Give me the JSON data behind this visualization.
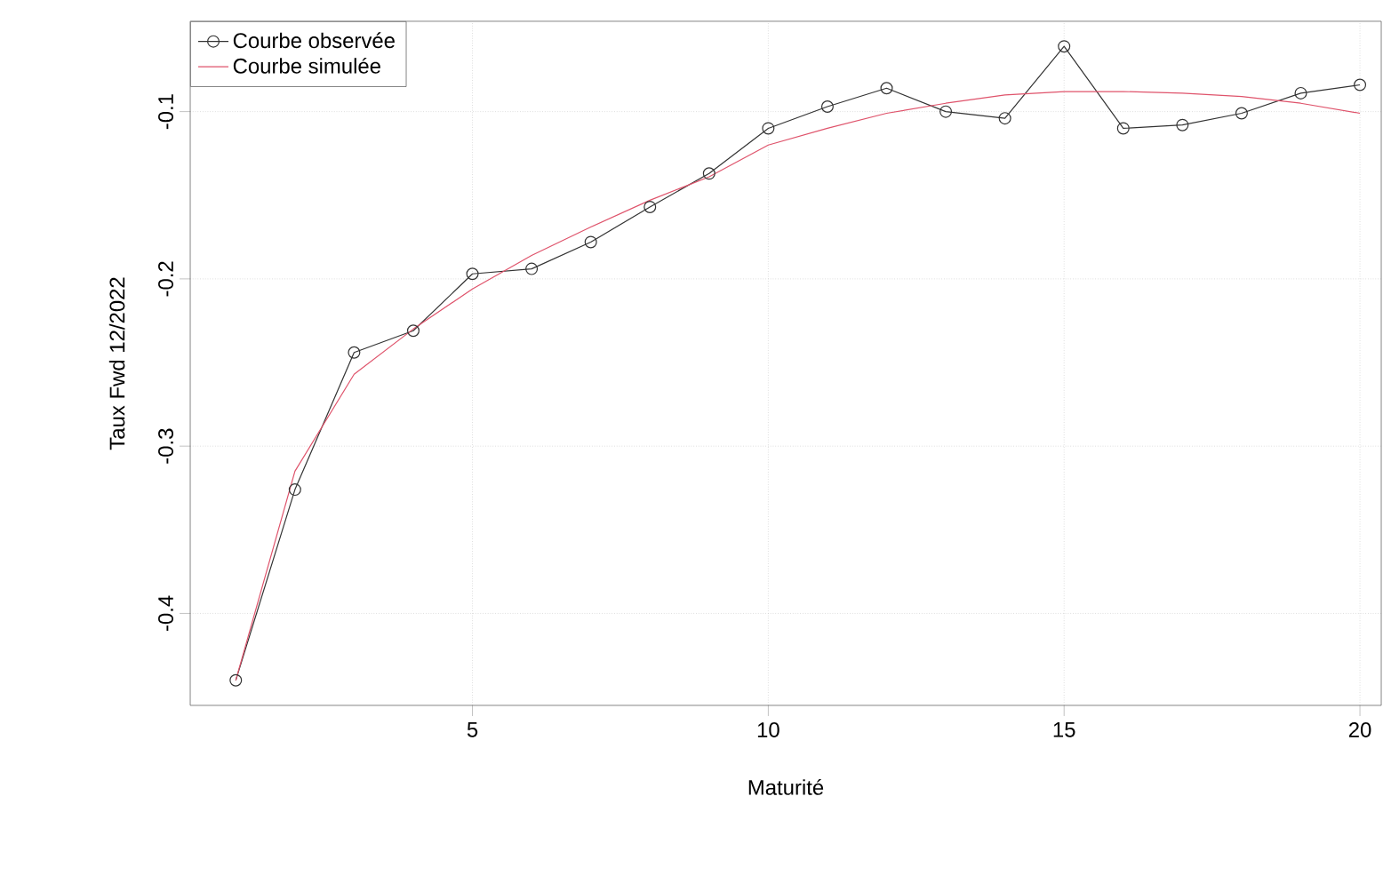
{
  "chart_data": {
    "type": "line",
    "xlabel": "Maturité",
    "ylabel": "Taux Fwd 12/2022",
    "x": [
      1,
      2,
      3,
      4,
      5,
      6,
      7,
      8,
      9,
      10,
      11,
      12,
      13,
      14,
      15,
      16,
      17,
      18,
      19,
      20
    ],
    "series": [
      {
        "name": "Courbe observée",
        "color": "#333333",
        "marker": "circle",
        "values": [
          -0.44,
          -0.326,
          -0.244,
          -0.231,
          -0.197,
          -0.194,
          -0.178,
          -0.157,
          -0.137,
          -0.11,
          -0.097,
          -0.086,
          -0.1,
          -0.104,
          -0.061,
          -0.11,
          -0.108,
          -0.101,
          -0.089,
          -0.084
        ]
      },
      {
        "name": "Courbe simulée",
        "color": "#df536b",
        "marker": "none",
        "values": [
          -0.44,
          -0.315,
          -0.257,
          -0.23,
          -0.206,
          -0.186,
          -0.169,
          -0.153,
          -0.139,
          -0.12,
          -0.11,
          -0.101,
          -0.095,
          -0.09,
          -0.088,
          -0.088,
          -0.089,
          -0.091,
          -0.095,
          -0.101
        ]
      }
    ],
    "xlim": [
      0.23,
      20.36
    ],
    "ylim": [
      -0.455,
      -0.046
    ],
    "xticks": [
      5,
      10,
      15,
      20
    ],
    "yticks": [
      -0.4,
      -0.3,
      -0.2,
      -0.1
    ],
    "grid": true,
    "legend": "top left",
    "line_style": "solid"
  }
}
